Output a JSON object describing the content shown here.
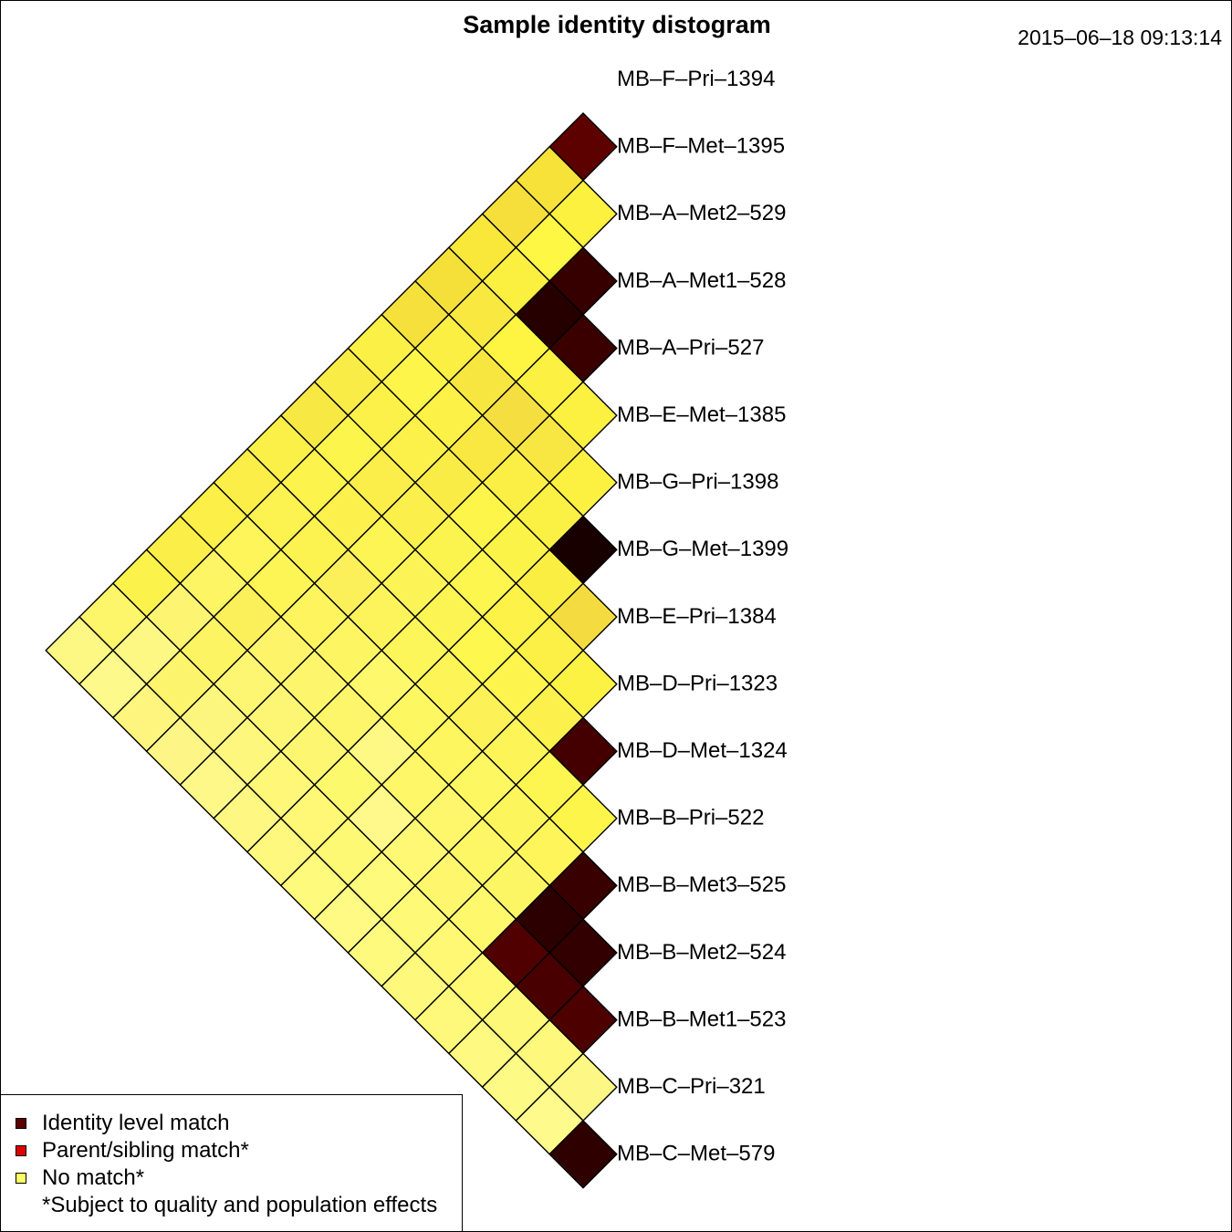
{
  "title": "Sample identity distogram",
  "timestamp": "2015–06–18 09:13:14",
  "chart_data": {
    "type": "heatmap",
    "subtype": "triangular-distogram",
    "samples": [
      "MB–F–Pri–1394",
      "MB–F–Met–1395",
      "MB–A–Met2–529",
      "MB–A–Met1–528",
      "MB–A–Pri–527",
      "MB–E–Met–1385",
      "MB–G–Pri–1398",
      "MB–G–Met–1399",
      "MB–E–Pri–1384",
      "MB–D–Pri–1323",
      "MB–D–Met–1324",
      "MB–B–Pri–522",
      "MB–B–Met3–525",
      "MB–B–Met2–524",
      "MB–B–Met1–523",
      "MB–C–Pri–321",
      "MB–C–Met–579"
    ],
    "cell_colors": {
      "0": [
        "#5c0000",
        "#f7e23a",
        "#f6df3b",
        "#f9e73a",
        "#f5e03a",
        "#f6e13c",
        "#fbf046",
        "#faec46",
        "#f8e844",
        "#fbf048",
        "#fbee48",
        "#fbef48",
        "#fbee48",
        "#fcf24c",
        "#fdf56a",
        "#fdf884"
      ],
      "1": [
        "#fcf13e",
        "#fef743",
        "#fbf040",
        "#f9e840",
        "#fbef44",
        "#fdf54a",
        "#fbf148",
        "#fcf54c",
        "#fcf34c",
        "#fcf250",
        "#fdf55a",
        "#fdf563",
        "#fdf572",
        "#fdf884",
        "#fdf98a"
      ],
      "2": [
        "#360000",
        "#260000",
        "#fdf542",
        "#f8e640",
        "#fcf146",
        "#fcf14a",
        "#fbee4a",
        "#fbf04c",
        "#fcf250",
        "#fdf456",
        "#fbef5a",
        "#fdf464",
        "#fdf46e",
        "#fdf57e"
      ],
      "3": [
        "#3a0000",
        "#fcf042",
        "#f5de40",
        "#f9e742",
        "#faec46",
        "#fbef4c",
        "#fdf554",
        "#fbf05a",
        "#fdf45e",
        "#fdf46a",
        "#fdf672",
        "#fdf67e",
        "#fdf687"
      ],
      "4": [
        "#fcf040",
        "#f8e742",
        "#fbef46",
        "#fdf54a",
        "#fcf44e",
        "#fcf456",
        "#fdf45c",
        "#fdf562",
        "#fdf66c",
        "#fdf674",
        "#fdf77e",
        "#fdf888"
      ],
      "5": [
        "#fcf140",
        "#fbf044",
        "#fcf348",
        "#fdf64e",
        "#fcf452",
        "#fdf65a",
        "#fef86c",
        "#fdf66a",
        "#fdf670",
        "#fef778",
        "#fef882"
      ],
      "6": [
        "#180000",
        "#fbee42",
        "#fcf248",
        "#fef84e",
        "#fdf558",
        "#fdf862",
        "#fef884",
        "#fdf96c",
        "#fef876",
        "#fef97e"
      ],
      "7": [
        "#f4dc40",
        "#fcf046",
        "#fdf44e",
        "#fcf156",
        "#fdf65e",
        "#fef768",
        "#fef98a",
        "#fef974",
        "#fefa7c"
      ],
      "8": [
        "#fcf244",
        "#fcf14c",
        "#fdf458",
        "#fdf762",
        "#fef76c",
        "#fef874",
        "#fefa7c",
        "#fefa84"
      ],
      "9": [
        "#440000",
        "#fdf650",
        "#fdf55c",
        "#fdf766",
        "#fef76e",
        "#fef976",
        "#fefa7e"
      ],
      "10": [
        "#fdf54a",
        "#fdf55a",
        "#fdf664",
        "#fef86c",
        "#fef874",
        "#fef97c"
      ],
      "11": [
        "#390000",
        "#2c0000",
        "#500000",
        "#fef872",
        "#fef97a"
      ],
      "12": [
        "#330000",
        "#480000",
        "#fef878",
        "#fef980"
      ],
      "13": [
        "#4c0000",
        "#fef97c",
        "#fefa86"
      ],
      "14": [
        "#fdf786",
        "#fefa8c"
      ],
      "15": [
        "#2f0000"
      ]
    },
    "legend": {
      "position": "bottom-left",
      "items": [
        {
          "label": "Identity level match",
          "color": "#5c0000"
        },
        {
          "label": "Parent/sibling match*",
          "color": "#dd0000"
        },
        {
          "label": "No match*",
          "color": "#ffff66"
        }
      ],
      "note": "*Subject to quality and population effects"
    }
  }
}
